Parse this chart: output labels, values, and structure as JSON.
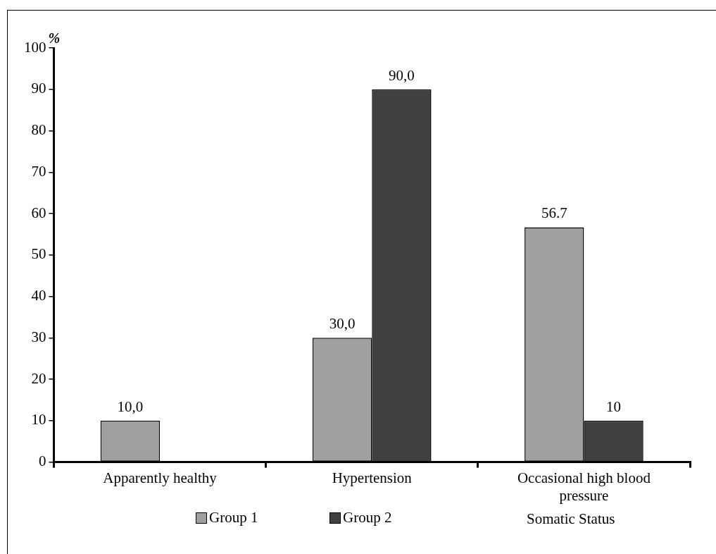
{
  "chart_data": {
    "type": "bar",
    "xlabel": "Somatic Status",
    "ylabel": "%",
    "categories": [
      "Apparently healthy",
      "Hypertension",
      "Occasional high blood pressure"
    ],
    "series": [
      {
        "name": "Group 1",
        "color": "#a0a0a0",
        "values": [
          10,
          30,
          56.7
        ],
        "value_labels": [
          "10,0",
          "30,0",
          "56.7"
        ]
      },
      {
        "name": "Group 2",
        "color": "#404040",
        "values": [
          null,
          90,
          10
        ],
        "value_labels": [
          null,
          "90,0",
          "10"
        ]
      }
    ],
    "ylim": [
      0,
      100
    ],
    "yticks": [
      0,
      10,
      20,
      30,
      40,
      50,
      60,
      70,
      80,
      90,
      100
    ],
    "grid": false,
    "legend": "bottom"
  }
}
